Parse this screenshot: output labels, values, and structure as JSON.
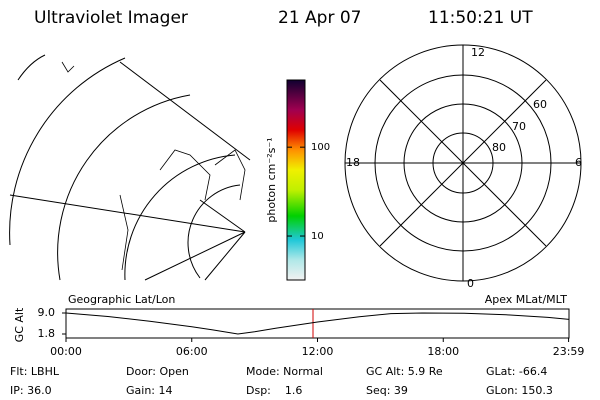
{
  "header": {
    "title": "Ultraviolet Imager",
    "date": "21 Apr 07",
    "time": "11:50:21 UT"
  },
  "colorbar": {
    "label": "photon cm⁻²s⁻¹",
    "clim": [
      3.2,
      570
    ],
    "ticks": [
      10,
      100
    ],
    "log": true
  },
  "polar": {
    "labels": [
      "12",
      "18",
      "6",
      "0",
      "80",
      "70",
      "60"
    ]
  },
  "timeline": {
    "left_label": "Geographic Lat/Lon",
    "right_label": "Apex MLat/MLT",
    "ylabel": "GC Alt",
    "xlim": [
      0,
      24
    ],
    "xticks": [
      {
        "value": 0,
        "label": "00:00"
      },
      {
        "value": 6,
        "label": "06:00"
      },
      {
        "value": 12,
        "label": "12:00"
      },
      {
        "value": 18,
        "label": "18:00"
      },
      {
        "value": 23.98,
        "label": "23:59"
      }
    ],
    "ylim": [
      1.8,
      9.0
    ],
    "yticks": [
      {
        "value": 9.0,
        "label": "9.0"
      },
      {
        "value": 1.8,
        "label": "1.8"
      }
    ],
    "x": [
      0,
      2,
      4,
      6,
      7,
      8.2,
      9,
      10,
      12,
      14,
      15.5,
      17,
      19,
      21,
      23,
      24
    ],
    "values": [
      9.0,
      7.8,
      6.2,
      4.3,
      3.2,
      1.8,
      2.6,
      3.8,
      5.9,
      7.7,
      8.8,
      9.0,
      8.9,
      8.4,
      7.5,
      6.8
    ]
  },
  "footer": {
    "rows": [
      [
        "Flt: LBHL",
        "Door: Open",
        "Mode: Normal",
        "GC Alt: 5.9 Re",
        "GLat: -66.4"
      ],
      [
        "IP: 36.0",
        "Gain: 14",
        "Dsp:    1.6",
        "Seq: 39",
        "GLon: 150.3"
      ]
    ]
  }
}
